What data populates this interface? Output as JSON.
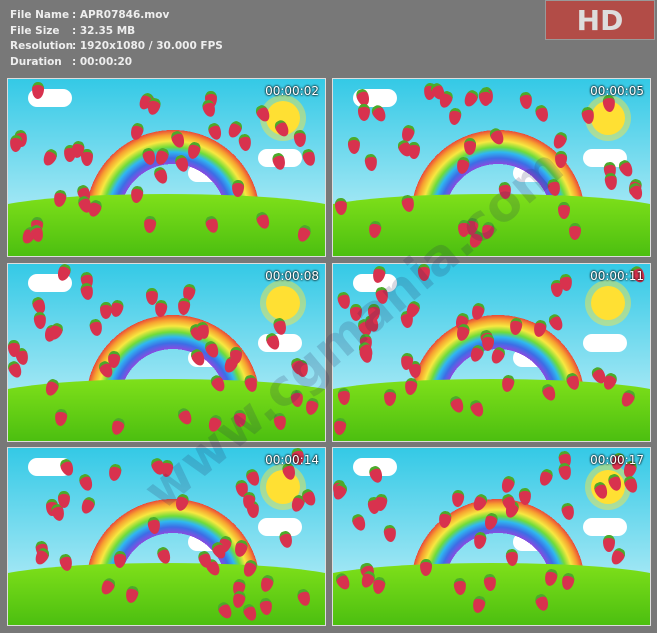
{
  "info": [
    {
      "label": "File Name",
      "value": "APR07846.mov"
    },
    {
      "label": "File Size",
      "value": "32.35 MB"
    },
    {
      "label": "Resolution",
      "value": "1920x1080 / 30.000 FPS"
    },
    {
      "label": "Duration",
      "value": "00:00:20"
    }
  ],
  "badge": "HD",
  "watermark": "www.cgmania.com",
  "thumbnails": [
    {
      "timecode": "00:00:02"
    },
    {
      "timecode": "00:00:05"
    },
    {
      "timecode": "00:00:08"
    },
    {
      "timecode": "00:00:11"
    },
    {
      "timecode": "00:00:14"
    },
    {
      "timecode": "00:00:17"
    }
  ],
  "colors": {
    "background": "#787878",
    "badge": "#b24c47"
  }
}
